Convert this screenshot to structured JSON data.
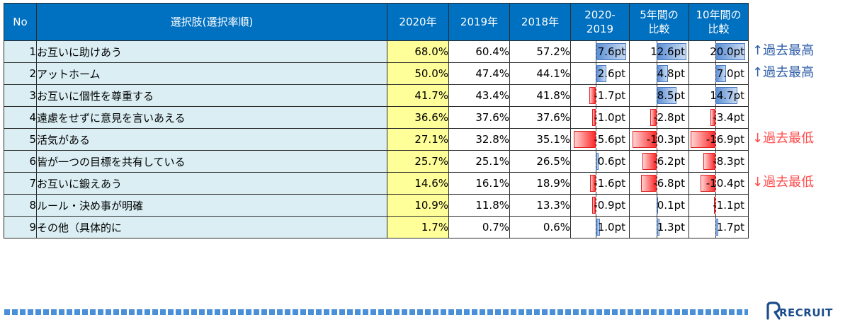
{
  "chart_data": {
    "type": "table",
    "headers": {
      "no": "No",
      "choice": "選択肢(選択率順)",
      "y2020": "2020年",
      "y2019": "2019年",
      "y2018": "2018年",
      "d1": [
        "2020-",
        "2019"
      ],
      "d5": [
        "5年間の",
        "比較"
      ],
      "d10": [
        "10年間の",
        "比較"
      ]
    },
    "rows": [
      {
        "no": "1",
        "choice": "お互いに助けあう",
        "y2020": "68.0%",
        "y2019": "60.4%",
        "y2018": "57.2%",
        "d1": 7.6,
        "d1_label": "7.6pt",
        "d5": 12.6,
        "d5_label": "12.6pt",
        "d10": 20.0,
        "d10_label": "20.0pt"
      },
      {
        "no": "2",
        "choice": "アットホーム",
        "y2020": "50.0%",
        "y2019": "47.4%",
        "y2018": "44.1%",
        "d1": 2.6,
        "d1_label": "2.6pt",
        "d5": 4.8,
        "d5_label": "4.8pt",
        "d10": 7.0,
        "d10_label": "7.0pt"
      },
      {
        "no": "3",
        "choice": "お互いに個性を尊重する",
        "y2020": "41.7%",
        "y2019": "43.4%",
        "y2018": "41.8%",
        "d1": -1.7,
        "d1_label": "-1.7pt",
        "d5": 8.5,
        "d5_label": "8.5pt",
        "d10": 14.7,
        "d10_label": "14.7pt"
      },
      {
        "no": "4",
        "choice": "遠慮をせずに意見を言いあえる",
        "y2020": "36.6%",
        "y2019": "37.6%",
        "y2018": "37.6%",
        "d1": -1.0,
        "d1_label": "-1.0pt",
        "d5": -2.8,
        "d5_label": "-2.8pt",
        "d10": -3.4,
        "d10_label": "-3.4pt"
      },
      {
        "no": "5",
        "choice": "活気がある",
        "y2020": "27.1%",
        "y2019": "32.8%",
        "y2018": "35.1%",
        "d1": -5.6,
        "d1_label": "-5.6pt",
        "d5": -10.3,
        "d5_label": "-10.3pt",
        "d10": -16.9,
        "d10_label": "-16.9pt"
      },
      {
        "no": "6",
        "choice": "皆が一つの目標を共有している",
        "y2020": "25.7%",
        "y2019": "25.1%",
        "y2018": "26.5%",
        "d1": 0.6,
        "d1_label": "0.6pt",
        "d5": -6.2,
        "d5_label": "-6.2pt",
        "d10": -8.3,
        "d10_label": "-8.3pt"
      },
      {
        "no": "7",
        "choice": "お互いに鍛えあう",
        "y2020": "14.6%",
        "y2019": "16.1%",
        "y2018": "18.9%",
        "d1": -1.6,
        "d1_label": "-1.6pt",
        "d5": -6.8,
        "d5_label": "-6.8pt",
        "d10": -10.4,
        "d10_label": "-10.4pt"
      },
      {
        "no": "8",
        "choice": "ルール・決め事が明確",
        "y2020": "10.9%",
        "y2019": "11.8%",
        "y2018": "13.3%",
        "d1": -0.9,
        "d1_label": "-0.9pt",
        "d5": 0.1,
        "d5_label": "0.1pt",
        "d10": -1.1,
        "d10_label": "-1.1pt"
      },
      {
        "no": "9",
        "choice": "その他（具体的に",
        "y2020": "1.7%",
        "y2019": "0.7%",
        "y2018": "0.6%",
        "d1": 1.0,
        "d1_label": "1.0pt",
        "d5": 1.3,
        "d5_label": "1.3pt",
        "d10": 1.7,
        "d10_label": "1.7pt"
      }
    ],
    "diff_scale": {
      "d1": [
        -6,
        8
      ],
      "d5": [
        -11,
        13
      ],
      "d10": [
        -17,
        21
      ]
    },
    "notes": [
      {
        "row": 1,
        "text": "↑過去最高",
        "kind": "high"
      },
      {
        "row": 2,
        "text": "↑過去最高",
        "kind": "high"
      },
      {
        "row": 5,
        "text": "↓過去最低",
        "kind": "low"
      },
      {
        "row": 7,
        "text": "↓過去最低",
        "kind": "low"
      }
    ]
  },
  "colors": {
    "header": "#0070c0",
    "highlight_2020": "#ffff99",
    "row_label_bg": "#daeef3",
    "positive": "#5b8fd6",
    "negative": "#ff2a2a",
    "note_high": "#2e5da8",
    "note_low": "#ff4b4b",
    "stripe": "#4a90d9"
  },
  "footer": {
    "brand": "RECRUIT",
    "logo_icon": "recruit-r-icon"
  }
}
